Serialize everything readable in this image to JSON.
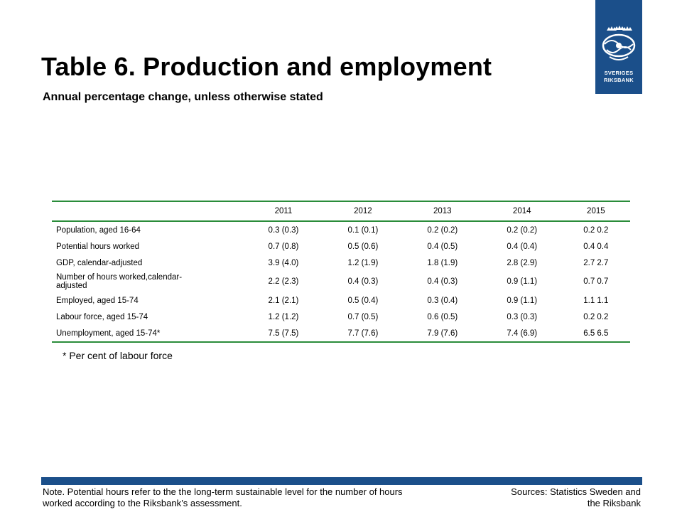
{
  "title": "Table 6. Production and employment",
  "subtitle": "Annual percentage change, unless otherwise stated",
  "logo": {
    "line1": "SVERIGES",
    "line2": "RIKSBANK",
    "color": "#1b4f8a"
  },
  "table": {
    "columns": [
      "2011",
      "2012",
      "2013",
      "2014",
      "2015"
    ],
    "rows": [
      {
        "label": "Population, aged 16-64",
        "values": [
          "0.3 (0.3)",
          "0.1 (0.1)",
          "0.2 (0.2)",
          "0.2 (0.2)",
          "0.2 0.2"
        ]
      },
      {
        "label": "Potential hours worked",
        "values": [
          "0.7 (0.8)",
          "0.5 (0.6)",
          "0.4 (0.5)",
          "0.4 (0.4)",
          "0.4 0.4"
        ]
      },
      {
        "label": "GDP, calendar-adjusted",
        "values": [
          "3.9 (4.0)",
          "1.2 (1.9)",
          "1.8 (1.9)",
          "2.8 (2.9)",
          "2.7 2.7"
        ]
      },
      {
        "label_line1": "Number of hours worked,calendar-",
        "label_line2": "adjusted",
        "values": [
          "2.2 (2.3)",
          "0.4 (0.3)",
          "0.4 (0.3)",
          "0.9 (1.1)",
          "0.7 0.7"
        ]
      },
      {
        "label": "Employed, aged 15-74",
        "values": [
          "2.1 (2.1)",
          "0.5 (0.4)",
          "0.3 (0.4)",
          "0.9 (1.1)",
          "1.1 1.1"
        ]
      },
      {
        "label": "Labour force, aged 15-74",
        "values": [
          "1.2 (1.2)",
          "0.7 (0.5)",
          "0.6 (0.5)",
          "0.3 (0.3)",
          "0.2 0.2"
        ]
      },
      {
        "label": "Unemployment, aged 15-74*",
        "values": [
          "7.5 (7.5)",
          "7.7 (7.6)",
          "7.9 (7.6)",
          "7.4 (6.9)",
          "6.5 6.5"
        ]
      }
    ]
  },
  "footnote": "* Per cent of labour force",
  "note": "Note. Potential hours refer to the the long-term sustainable level for the number of hours worked according to the Riksbank’s assessment.",
  "sources": "Sources: Statistics Sweden and the Riksbank",
  "colors": {
    "accent_green": "#2a8c3a",
    "brand_blue": "#1b4f8a"
  }
}
